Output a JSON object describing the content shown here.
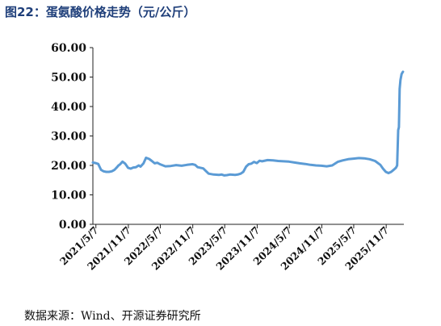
{
  "figure_title": "图22：蛋氨酸价格走势（元/公斤）",
  "source_note": "数据来源：Wind、开源证券研究所",
  "colors": {
    "title": "#1f3f7a",
    "line": "#5b9bd5",
    "axis": "#222222"
  },
  "chart_data": {
    "type": "line",
    "title": "",
    "xlabel": "",
    "ylabel": "",
    "ylim": [
      0,
      60
    ],
    "grid": false,
    "y_ticks": [
      "0.00",
      "10.00",
      "20.00",
      "30.00",
      "40.00",
      "50.00",
      "60.00"
    ],
    "x_ticks": [
      "2021/5/7",
      "2021/11/7",
      "2022/5/7",
      "2022/11/7",
      "2023/5/7",
      "2023/11/7",
      "2024/5/7",
      "2024/11/7",
      "2025/5/7",
      "2025/11/7"
    ],
    "x_range": [
      "2021/4/20",
      "2026/2/15"
    ],
    "series": [
      {
        "x": [
          "2021/4/20",
          "2021/5/5",
          "2021/5/20",
          "2021/6/5",
          "2021/6/20",
          "2021/7/5",
          "2021/7/20",
          "2021/8/5",
          "2021/8/20",
          "2021/9/5",
          "2021/9/12",
          "2021/9/20",
          "2021/10/5",
          "2021/10/20",
          "2021/11/5",
          "2021/11/20",
          "2021/12/5",
          "2021/12/20",
          "2022/1/5",
          "2022/1/15",
          "2022/2/1",
          "2022/2/15",
          "2022/3/5",
          "2022/3/20",
          "2022/4/5",
          "2022/4/20",
          "2022/5/5",
          "2022/6/5",
          "2022/7/5",
          "2022/8/5",
          "2022/9/5",
          "2022/10/5",
          "2022/11/5",
          "2022/11/20",
          "2022/12/5",
          "2023/1/5",
          "2023/2/5",
          "2023/3/5",
          "2023/4/5",
          "2023/4/20",
          "2023/5/5",
          "2023/5/20",
          "2023/6/5",
          "2023/7/5",
          "2023/7/20",
          "2023/8/5",
          "2023/8/20",
          "2023/9/5",
          "2023/9/20",
          "2023/10/5",
          "2023/10/20",
          "2023/11/5",
          "2023/11/20",
          "2023/12/5",
          "2024/1/5",
          "2024/2/5",
          "2024/3/5",
          "2024/4/5",
          "2024/5/5",
          "2024/6/5",
          "2024/7/5",
          "2024/8/5",
          "2024/9/5",
          "2024/10/5",
          "2024/11/5",
          "2024/12/5",
          "2025/1/5",
          "2025/2/5",
          "2025/3/5",
          "2025/4/5",
          "2025/5/5",
          "2025/6/5",
          "2025/7/5",
          "2025/8/5",
          "2025/9/5",
          "2025/10/5",
          "2025/10/20",
          "2025/11/5",
          "2025/11/20",
          "2025/12/5",
          "2025/12/15",
          "2025/12/25",
          "2026/1/1",
          "2026/1/8",
          "2026/1/14",
          "2026/1/18",
          "2026/1/22",
          "2026/1/27",
          "2026/2/2",
          "2026/2/10"
        ],
        "values": [
          21.0,
          20.8,
          20.5,
          18.5,
          18.0,
          17.8,
          17.8,
          18.0,
          18.5,
          19.5,
          20.0,
          20.3,
          21.3,
          20.6,
          19.2,
          18.9,
          19.3,
          19.4,
          20.0,
          19.6,
          20.7,
          22.6,
          22.2,
          21.5,
          20.7,
          20.9,
          20.4,
          19.7,
          19.8,
          20.1,
          19.9,
          20.2,
          20.4,
          20.2,
          19.4,
          19.0,
          17.2,
          16.9,
          16.8,
          16.9,
          16.6,
          16.7,
          16.9,
          16.8,
          16.9,
          17.2,
          17.8,
          19.6,
          20.4,
          20.6,
          21.2,
          20.8,
          21.6,
          21.4,
          21.8,
          21.7,
          21.5,
          21.4,
          21.3,
          21.0,
          20.7,
          20.5,
          20.2,
          20.0,
          19.9,
          19.7,
          20.0,
          21.2,
          21.7,
          22.1,
          22.3,
          22.5,
          22.4,
          22.1,
          21.5,
          20.2,
          18.9,
          17.8,
          17.4,
          17.8,
          18.3,
          18.8,
          19.2,
          20.0,
          32.0,
          33.0,
          46.0,
          49.0,
          51.0,
          51.8
        ]
      }
    ]
  }
}
